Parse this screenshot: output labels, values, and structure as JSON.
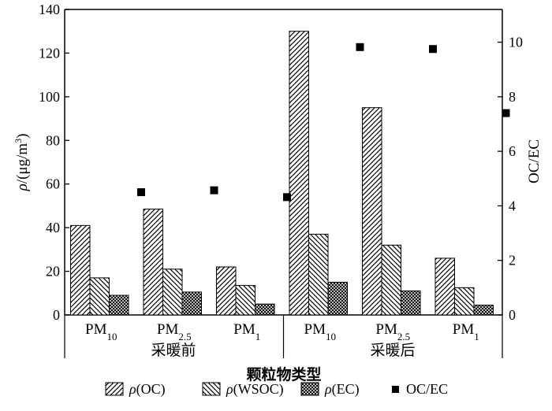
{
  "chart_data": {
    "type": "bar",
    "title": "",
    "xlabel": "颗粒物类型",
    "ylabel": "ρ/(μg/m³)",
    "ylabel_parts": {
      "rho": "ρ",
      "rest": "/(μg/m",
      "sup": "3",
      "close": ")"
    },
    "y2label": "OC/EC",
    "ylim": [
      0,
      140
    ],
    "y2lim": [
      0,
      11.2
    ],
    "yticks": [
      0,
      20,
      40,
      60,
      80,
      100,
      120,
      140
    ],
    "y2ticks": [
      0,
      2,
      4,
      6,
      8,
      10
    ],
    "groups": [
      "采暖前",
      "采暖后"
    ],
    "categories": [
      {
        "base": "PM",
        "sub": "10",
        "group": "采暖前"
      },
      {
        "base": "PM",
        "sub": "2.5",
        "group": "采暖前"
      },
      {
        "base": "PM",
        "sub": "1",
        "group": "采暖前"
      },
      {
        "base": "PM",
        "sub": "10",
        "group": "采暖后"
      },
      {
        "base": "PM",
        "sub": "2.5",
        "group": "采暖后"
      },
      {
        "base": "PM",
        "sub": "1",
        "group": "采暖后"
      }
    ],
    "series": [
      {
        "name": "ρ(OC)",
        "rho": "ρ",
        "label": "(OC)",
        "pattern": "diag-right",
        "axis": "left",
        "values": [
          41,
          48.5,
          22,
          130,
          95,
          26
        ]
      },
      {
        "name": "ρ(WSOC)",
        "rho": "ρ",
        "label": "(WSOC)",
        "pattern": "diag-left",
        "axis": "left",
        "values": [
          17,
          21,
          13.5,
          37,
          32,
          12.5
        ]
      },
      {
        "name": "ρ(EC)",
        "rho": "ρ",
        "label": "(EC)",
        "pattern": "crosshatch",
        "axis": "left",
        "values": [
          9,
          10.5,
          5,
          15,
          11,
          4.5
        ]
      },
      {
        "name": "OC/EC",
        "label": "OC/EC",
        "marker": "square",
        "axis": "right",
        "values": [
          4.5,
          4.57,
          4.32,
          9.82,
          9.75,
          7.4
        ]
      }
    ],
    "grid": false,
    "legend_position": "bottom"
  }
}
